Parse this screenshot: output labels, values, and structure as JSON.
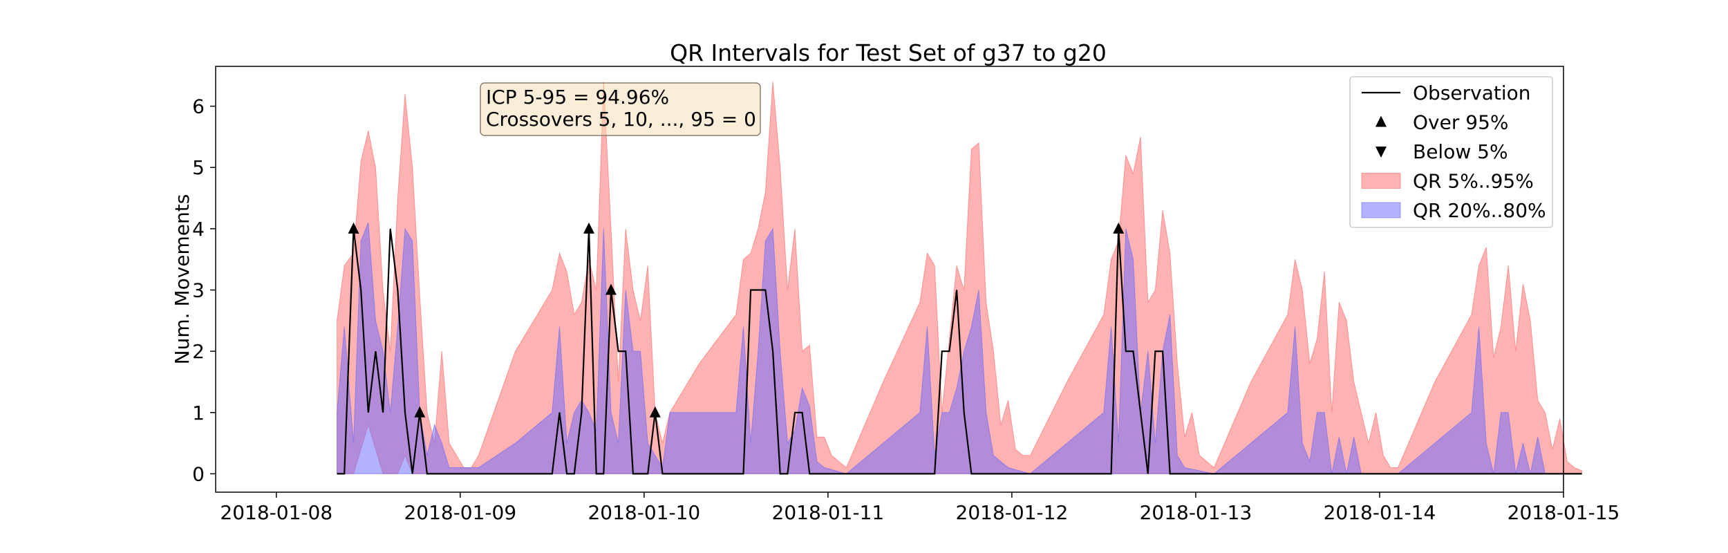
{
  "chart_data": {
    "type": "area",
    "title": "QR Intervals for Test Set of g37 to g20",
    "xlabel": "",
    "ylabel": "Num. Movements",
    "x_ticks": [
      "2018-01-08",
      "2018-01-09",
      "2018-01-10",
      "2018-01-11",
      "2018-01-12",
      "2018-01-13",
      "2018-01-14",
      "2018-01-15"
    ],
    "y_ticks": [
      0,
      1,
      2,
      3,
      4,
      5,
      6
    ],
    "xlim_days": [
      -0.33,
      7.0
    ],
    "ylim": [
      -0.3,
      6.65
    ],
    "annotation": [
      "ICP 5-95 = 94.96%",
      "Crossovers 5, 10, ..., 95 = 0"
    ],
    "legend_position": "top-right",
    "legend": [
      {
        "label": "Observation",
        "kind": "line",
        "color": "#000000"
      },
      {
        "label": "Over 95%",
        "kind": "triangle-up",
        "color": "#000000"
      },
      {
        "label": "Below 5%",
        "kind": "triangle-down",
        "color": "#000000"
      },
      {
        "label": "QR 5%..95%",
        "kind": "patch",
        "color": "#ff6666"
      },
      {
        "label": "QR 20%..80%",
        "kind": "patch",
        "color": "#6666ff"
      }
    ],
    "colors": {
      "band_5_95": "#ff6666",
      "band_20_80": "#6666ff",
      "observation": "#000000",
      "annotation_bg": "#f5deb3",
      "annotation_border": "#8b7d6b"
    },
    "series": [
      {
        "kind": "band_5_95",
        "upper": [
          [
            0.33,
            2.5
          ],
          [
            0.37,
            3.4
          ],
          [
            0.42,
            3.6
          ],
          [
            0.46,
            5.1
          ],
          [
            0.5,
            5.6
          ],
          [
            0.54,
            5.0
          ],
          [
            0.58,
            3.0
          ],
          [
            0.62,
            2.0
          ],
          [
            0.66,
            4.5
          ],
          [
            0.7,
            6.2
          ],
          [
            0.74,
            5.0
          ],
          [
            0.78,
            2.9
          ],
          [
            0.82,
            1.0
          ],
          [
            0.86,
            0.5
          ],
          [
            0.9,
            2.0
          ],
          [
            0.94,
            0.5
          ],
          [
            0.98,
            0.3
          ],
          [
            1.02,
            0.1
          ],
          [
            1.06,
            0.1
          ],
          [
            1.1,
            0.3
          ],
          [
            1.3,
            2.0
          ],
          [
            1.5,
            3.0
          ],
          [
            1.54,
            3.6
          ],
          [
            1.58,
            3.3
          ],
          [
            1.62,
            2.6
          ],
          [
            1.66,
            2.8
          ],
          [
            1.7,
            3.5
          ],
          [
            1.74,
            3.0
          ],
          [
            1.78,
            6.4
          ],
          [
            1.82,
            4.0
          ],
          [
            1.86,
            1.5
          ],
          [
            1.9,
            4.0
          ],
          [
            1.94,
            3.0
          ],
          [
            1.98,
            2.5
          ],
          [
            2.02,
            3.4
          ],
          [
            2.06,
            1.0
          ],
          [
            2.1,
            0.5
          ],
          [
            2.14,
            1.0
          ],
          [
            2.3,
            1.8
          ],
          [
            2.5,
            2.6
          ],
          [
            2.54,
            3.5
          ],
          [
            2.58,
            3.6
          ],
          [
            2.62,
            4.0
          ],
          [
            2.66,
            4.6
          ],
          [
            2.7,
            6.4
          ],
          [
            2.74,
            5.0
          ],
          [
            2.78,
            3.0
          ],
          [
            2.82,
            4.0
          ],
          [
            2.86,
            2.0
          ],
          [
            2.9,
            2.1
          ],
          [
            2.94,
            0.6
          ],
          [
            2.98,
            0.6
          ],
          [
            3.02,
            0.3
          ],
          [
            3.06,
            0.2
          ],
          [
            3.1,
            0.1
          ],
          [
            3.3,
            1.5
          ],
          [
            3.5,
            2.8
          ],
          [
            3.54,
            3.6
          ],
          [
            3.58,
            3.4
          ],
          [
            3.62,
            1.0
          ],
          [
            3.66,
            2.2
          ],
          [
            3.7,
            3.4
          ],
          [
            3.74,
            3.0
          ],
          [
            3.78,
            5.3
          ],
          [
            3.82,
            5.4
          ],
          [
            3.86,
            2.8
          ],
          [
            3.9,
            2.0
          ],
          [
            3.94,
            0.8
          ],
          [
            3.98,
            1.2
          ],
          [
            4.02,
            0.4
          ],
          [
            4.06,
            0.3
          ],
          [
            4.1,
            0.3
          ],
          [
            4.3,
            1.5
          ],
          [
            4.5,
            2.6
          ],
          [
            4.54,
            3.5
          ],
          [
            4.58,
            3.8
          ],
          [
            4.62,
            5.2
          ],
          [
            4.66,
            4.9
          ],
          [
            4.7,
            5.5
          ],
          [
            4.74,
            2.8
          ],
          [
            4.78,
            3.0
          ],
          [
            4.82,
            4.3
          ],
          [
            4.86,
            3.6
          ],
          [
            4.9,
            1.8
          ],
          [
            4.94,
            0.6
          ],
          [
            4.98,
            1.0
          ],
          [
            5.02,
            0.3
          ],
          [
            5.06,
            0.2
          ],
          [
            5.1,
            0.1
          ],
          [
            5.3,
            1.5
          ],
          [
            5.5,
            2.6
          ],
          [
            5.54,
            3.5
          ],
          [
            5.58,
            3.0
          ],
          [
            5.62,
            1.8
          ],
          [
            5.66,
            2.2
          ],
          [
            5.7,
            3.3
          ],
          [
            5.74,
            1.0
          ],
          [
            5.78,
            2.8
          ],
          [
            5.82,
            2.5
          ],
          [
            5.86,
            1.5
          ],
          [
            5.9,
            1.0
          ],
          [
            5.94,
            0.5
          ],
          [
            5.98,
            1.0
          ],
          [
            6.02,
            0.3
          ],
          [
            6.06,
            0.1
          ],
          [
            6.1,
            0.1
          ],
          [
            6.3,
            1.5
          ],
          [
            6.5,
            2.6
          ],
          [
            6.54,
            3.4
          ],
          [
            6.58,
            3.7
          ],
          [
            6.62,
            1.9
          ],
          [
            6.66,
            2.4
          ],
          [
            6.7,
            3.4
          ],
          [
            6.74,
            2.0
          ],
          [
            6.78,
            3.1
          ],
          [
            6.82,
            2.5
          ],
          [
            6.86,
            1.2
          ],
          [
            6.9,
            1.0
          ],
          [
            6.94,
            0.4
          ],
          [
            6.98,
            0.9
          ],
          [
            7.02,
            0.2
          ],
          [
            7.06,
            0.1
          ],
          [
            7.1,
            0.05
          ]
        ],
        "lower": [
          [
            0.33,
            0.0
          ],
          [
            0.42,
            0.0
          ],
          [
            0.5,
            0.8
          ],
          [
            0.58,
            0.0
          ],
          [
            0.66,
            0.0
          ],
          [
            0.7,
            0.3
          ],
          [
            0.74,
            0.0
          ],
          [
            7.1,
            0.0
          ]
        ]
      },
      {
        "kind": "band_20_80",
        "upper": [
          [
            0.33,
            1.0
          ],
          [
            0.37,
            2.4
          ],
          [
            0.42,
            0.5
          ],
          [
            0.46,
            3.8
          ],
          [
            0.5,
            4.1
          ],
          [
            0.54,
            2.5
          ],
          [
            0.58,
            2.0
          ],
          [
            0.62,
            1.0
          ],
          [
            0.66,
            2.4
          ],
          [
            0.7,
            4.0
          ],
          [
            0.74,
            3.8
          ],
          [
            0.78,
            1.0
          ],
          [
            0.82,
            0.3
          ],
          [
            0.86,
            0.8
          ],
          [
            0.9,
            0.5
          ],
          [
            0.94,
            0.1
          ],
          [
            0.98,
            0.1
          ],
          [
            1.1,
            0.1
          ],
          [
            1.3,
            0.5
          ],
          [
            1.5,
            1.0
          ],
          [
            1.54,
            2.4
          ],
          [
            1.58,
            0.5
          ],
          [
            1.62,
            1.0
          ],
          [
            1.66,
            1.2
          ],
          [
            1.7,
            1.0
          ],
          [
            1.74,
            0.7
          ],
          [
            1.78,
            4.0
          ],
          [
            1.82,
            1.0
          ],
          [
            1.86,
            0.5
          ],
          [
            1.9,
            3.0
          ],
          [
            1.94,
            2.0
          ],
          [
            1.98,
            2.0
          ],
          [
            2.02,
            0.5
          ],
          [
            2.06,
            0.3
          ],
          [
            2.1,
            0.1
          ],
          [
            2.14,
            1.0
          ],
          [
            2.3,
            1.0
          ],
          [
            2.5,
            1.0
          ],
          [
            2.54,
            2.4
          ],
          [
            2.58,
            0.5
          ],
          [
            2.62,
            2.0
          ],
          [
            2.66,
            3.8
          ],
          [
            2.7,
            4.0
          ],
          [
            2.74,
            2.0
          ],
          [
            2.78,
            0.5
          ],
          [
            2.82,
            0.7
          ],
          [
            2.86,
            1.4
          ],
          [
            2.9,
            1.1
          ],
          [
            2.94,
            0.2
          ],
          [
            2.98,
            0.1
          ],
          [
            3.1,
            0.0
          ],
          [
            3.3,
            0.5
          ],
          [
            3.5,
            1.0
          ],
          [
            3.54,
            2.4
          ],
          [
            3.58,
            0.3
          ],
          [
            3.62,
            1.0
          ],
          [
            3.66,
            1.0
          ],
          [
            3.7,
            1.4
          ],
          [
            3.74,
            2.0
          ],
          [
            3.78,
            2.4
          ],
          [
            3.82,
            3.0
          ],
          [
            3.86,
            1.0
          ],
          [
            3.9,
            0.3
          ],
          [
            3.94,
            0.2
          ],
          [
            3.98,
            0.1
          ],
          [
            4.1,
            0.0
          ],
          [
            4.3,
            0.5
          ],
          [
            4.5,
            1.0
          ],
          [
            4.54,
            2.4
          ],
          [
            4.58,
            0.5
          ],
          [
            4.62,
            4.0
          ],
          [
            4.66,
            3.5
          ],
          [
            4.7,
            1.0
          ],
          [
            4.74,
            2.0
          ],
          [
            4.78,
            0.5
          ],
          [
            4.82,
            2.0
          ],
          [
            4.86,
            2.6
          ],
          [
            4.9,
            0.3
          ],
          [
            4.94,
            0.1
          ],
          [
            5.1,
            0.0
          ],
          [
            5.3,
            0.5
          ],
          [
            5.5,
            1.0
          ],
          [
            5.54,
            2.4
          ],
          [
            5.58,
            0.5
          ],
          [
            5.62,
            0.2
          ],
          [
            5.66,
            1.0
          ],
          [
            5.7,
            1.0
          ],
          [
            5.74,
            0.0
          ],
          [
            5.78,
            0.6
          ],
          [
            5.82,
            0.0
          ],
          [
            5.86,
            0.6
          ],
          [
            5.9,
            0.0
          ],
          [
            6.1,
            0.0
          ],
          [
            6.3,
            0.5
          ],
          [
            6.5,
            1.0
          ],
          [
            6.54,
            2.4
          ],
          [
            6.58,
            0.5
          ],
          [
            6.62,
            0.0
          ],
          [
            6.66,
            1.0
          ],
          [
            6.7,
            1.0
          ],
          [
            6.74,
            0.0
          ],
          [
            6.78,
            0.5
          ],
          [
            6.82,
            0.0
          ],
          [
            6.86,
            0.6
          ],
          [
            6.9,
            0.0
          ],
          [
            7.1,
            0.0
          ]
        ],
        "lower": [
          [
            0.33,
            0.0
          ],
          [
            7.1,
            0.0
          ]
        ]
      },
      {
        "kind": "observation",
        "values": [
          [
            0.33,
            0.0
          ],
          [
            0.37,
            0.0
          ],
          [
            0.42,
            4.0
          ],
          [
            0.46,
            3.0
          ],
          [
            0.5,
            1.0
          ],
          [
            0.54,
            2.0
          ],
          [
            0.58,
            1.0
          ],
          [
            0.62,
            4.0
          ],
          [
            0.66,
            3.0
          ],
          [
            0.7,
            1.0
          ],
          [
            0.74,
            0.0
          ],
          [
            0.78,
            1.0
          ],
          [
            0.82,
            0.0
          ],
          [
            1.5,
            0.0
          ],
          [
            1.54,
            1.0
          ],
          [
            1.58,
            0.0
          ],
          [
            1.62,
            0.0
          ],
          [
            1.66,
            1.0
          ],
          [
            1.7,
            4.0
          ],
          [
            1.74,
            0.0
          ],
          [
            1.78,
            0.0
          ],
          [
            1.82,
            3.0
          ],
          [
            1.86,
            2.0
          ],
          [
            1.9,
            2.0
          ],
          [
            1.94,
            0.0
          ],
          [
            1.98,
            0.0
          ],
          [
            2.02,
            0.0
          ],
          [
            2.06,
            1.0
          ],
          [
            2.1,
            0.0
          ],
          [
            2.54,
            0.0
          ],
          [
            2.58,
            3.0
          ],
          [
            2.66,
            3.0
          ],
          [
            2.7,
            2.0
          ],
          [
            2.74,
            0.0
          ],
          [
            2.78,
            0.0
          ],
          [
            2.82,
            1.0
          ],
          [
            2.86,
            1.0
          ],
          [
            2.9,
            0.0
          ],
          [
            3.58,
            0.0
          ],
          [
            3.62,
            2.0
          ],
          [
            3.66,
            2.0
          ],
          [
            3.7,
            3.0
          ],
          [
            3.74,
            1.0
          ],
          [
            3.78,
            0.0
          ],
          [
            4.54,
            0.0
          ],
          [
            4.58,
            4.0
          ],
          [
            4.62,
            2.0
          ],
          [
            4.66,
            2.0
          ],
          [
            4.7,
            1.0
          ],
          [
            4.74,
            0.0
          ],
          [
            4.78,
            2.0
          ],
          [
            4.82,
            2.0
          ],
          [
            4.86,
            0.0
          ],
          [
            7.1,
            0.0
          ]
        ]
      }
    ],
    "over_95_markers": [
      [
        0.42,
        4.0
      ],
      [
        0.78,
        1.0
      ],
      [
        1.7,
        4.0
      ],
      [
        1.82,
        3.0
      ],
      [
        2.06,
        1.0
      ],
      [
        4.58,
        4.0
      ]
    ],
    "below_5_markers": []
  }
}
